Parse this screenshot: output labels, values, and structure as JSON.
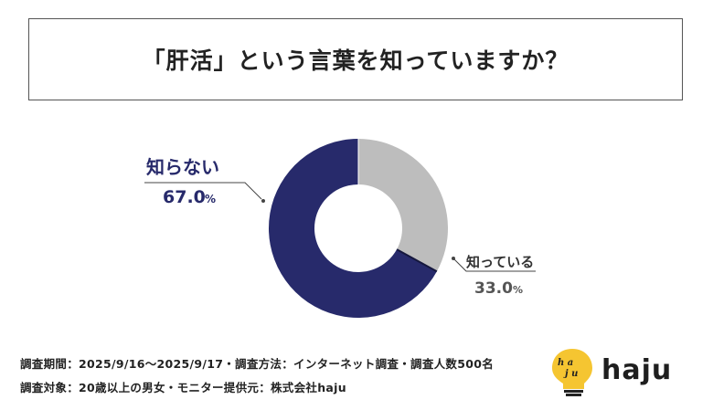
{
  "title": "「肝活」という言葉を知っていますか？",
  "chart_data": {
    "type": "pie",
    "categories": [
      "知っている",
      "知らない"
    ],
    "values": [
      33.0,
      67.0
    ],
    "value_labels": [
      "33.0",
      "67.0"
    ],
    "unit": "%",
    "colors": [
      "#bdbdbd",
      "#272a6b"
    ],
    "title": "「肝活」という言葉を知っていますか？"
  },
  "footer": {
    "line1": "調査期間：2025/9/16〜2025/9/17・調査方法：インターネット調査・調査人数500名",
    "line2": "調査対象：20歳以上の男女・モニター提供元：株式会社haju"
  },
  "logo": {
    "text": "haju",
    "bulb_text": "ha ju",
    "bulb_color": "#f5c531"
  }
}
